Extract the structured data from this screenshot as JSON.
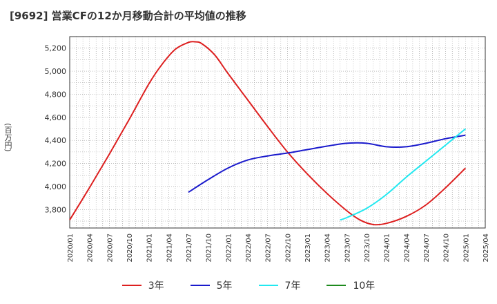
{
  "title": "[9692]  営業CFの12か月移動合計の平均値の推移",
  "y_unit": "(百万円)",
  "chart_data": {
    "type": "line",
    "title": "[9692]  営業CFの12か月移動合計の平均値の推移",
    "ylabel": "(百万円)",
    "xlabel": "",
    "ylim": [
      3640,
      5300
    ],
    "yticks": [
      3800,
      4000,
      4200,
      4400,
      4600,
      4800,
      5000,
      5200
    ],
    "ytick_labels": [
      "3,800",
      "4,000",
      "4,200",
      "4,400",
      "4,600",
      "4,800",
      "5,000",
      "5,200"
    ],
    "xticks": [
      "2020/01",
      "2020/04",
      "2020/07",
      "2020/10",
      "2021/01",
      "2021/04",
      "2021/07",
      "2021/10",
      "2022/01",
      "2022/04",
      "2022/07",
      "2022/10",
      "2023/01",
      "2023/04",
      "2023/07",
      "2023/10",
      "2024/01",
      "2024/04",
      "2024/07",
      "2024/10",
      "2025/01",
      "2025/04"
    ],
    "grid": true,
    "legend_position": "bottom",
    "series": [
      {
        "name": "3年",
        "color": "#dd1f1f",
        "x": [
          "2020/01",
          "2020/04",
          "2020/07",
          "2020/10",
          "2021/01",
          "2021/03",
          "2021/05",
          "2021/07",
          "2021/08",
          "2021/09",
          "2021/11",
          "2022/01",
          "2022/04",
          "2022/07",
          "2022/10",
          "2023/01",
          "2023/04",
          "2023/07",
          "2023/09",
          "2023/11",
          "2024/01",
          "2024/04",
          "2024/07",
          "2024/10",
          "2025/01"
        ],
        "values": [
          3710,
          3990,
          4280,
          4580,
          4890,
          5060,
          5190,
          5250,
          5255,
          5240,
          5140,
          4980,
          4750,
          4520,
          4300,
          4110,
          3940,
          3790,
          3710,
          3670,
          3680,
          3740,
          3840,
          3990,
          4160
        ]
      },
      {
        "name": "5年",
        "color": "#1a1acc",
        "x": [
          "2021/07",
          "2021/10",
          "2022/01",
          "2022/04",
          "2022/07",
          "2022/10",
          "2023/01",
          "2023/04",
          "2023/07",
          "2023/10",
          "2024/01",
          "2024/04",
          "2024/07",
          "2024/10",
          "2025/01"
        ],
        "values": [
          3950,
          4060,
          4160,
          4230,
          4265,
          4290,
          4320,
          4350,
          4375,
          4375,
          4345,
          4345,
          4375,
          4415,
          4445
        ]
      },
      {
        "name": "7年",
        "color": "#22e8f0",
        "x": [
          "2023/06",
          "2023/07",
          "2023/10",
          "2024/01",
          "2024/04",
          "2024/07",
          "2024/10",
          "2025/01"
        ],
        "values": [
          3710,
          3730,
          3810,
          3930,
          4080,
          4220,
          4360,
          4500
        ]
      },
      {
        "name": "10年",
        "color": "#1e8a1e",
        "x": [],
        "values": []
      }
    ]
  }
}
